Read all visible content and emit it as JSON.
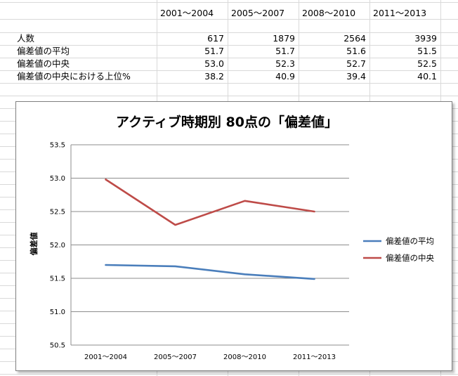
{
  "table": {
    "columns": [
      "2001～2004",
      "2005～2007",
      "2008～2010",
      "2011～2013"
    ],
    "rows": [
      {
        "label": "人数",
        "values": [
          "617",
          "1879",
          "2564",
          "3939"
        ]
      },
      {
        "label": "偏差値の平均",
        "values": [
          "51.7",
          "51.7",
          "51.6",
          "51.5"
        ]
      },
      {
        "label": "偏差値の中央",
        "values": [
          "53.0",
          "52.3",
          "52.7",
          "52.5"
        ]
      },
      {
        "label": "偏差値の中央における上位%",
        "values": [
          "38.2",
          "40.9",
          "39.4",
          "40.1"
        ]
      }
    ]
  },
  "chart_data": {
    "type": "line",
    "title": "アクティブ時期別  80点の「偏差値」",
    "xlabel": "",
    "ylabel": "偏差値",
    "categories": [
      "2001～2004",
      "2005～2007",
      "2008～2010",
      "2011～2013"
    ],
    "ylim": [
      50.5,
      53.5
    ],
    "yticks": [
      "53.5",
      "53.0",
      "52.5",
      "52.0",
      "51.5",
      "51.0",
      "50.5"
    ],
    "grid": true,
    "legend_position": "right",
    "series": [
      {
        "name": "偏差値の平均",
        "color": "#4a7ebb",
        "values": [
          51.7,
          51.68,
          51.56,
          51.49
        ]
      },
      {
        "name": "偏差値の中央",
        "color": "#be4b48",
        "values": [
          52.98,
          52.3,
          52.66,
          52.5
        ]
      }
    ]
  }
}
